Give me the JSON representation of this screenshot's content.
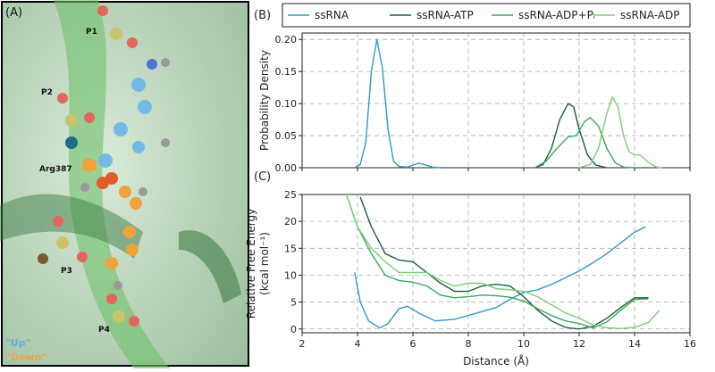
{
  "panel_a": {
    "label": "(A)",
    "annotations": [
      "P1",
      "P2",
      "Arg387",
      "P3",
      "P4"
    ],
    "states": [
      "\"Up\"",
      "\"Down\""
    ]
  },
  "chart_data": [
    {
      "type": "line",
      "panel_label": "(B)",
      "ylabel": [
        "Probability Density"
      ],
      "legend": "above",
      "grid": true,
      "show_xtick_labels": false,
      "xlim": [
        2,
        16
      ],
      "xticks": [
        2,
        4,
        6,
        8,
        10,
        12,
        14,
        16
      ],
      "ylim": [
        0,
        0.21
      ],
      "yticks": [
        {
          "value": 0,
          "label": "0.00"
        },
        {
          "value": 0.05,
          "label": "0.05"
        },
        {
          "value": 0.1,
          "label": "0.10"
        },
        {
          "value": 0.15,
          "label": "0.15"
        },
        {
          "value": 0.2,
          "label": "0.20"
        }
      ],
      "series": [
        {
          "name": "ssRNA",
          "color": "#2e9bc4",
          "x": [
            3.9,
            4.1,
            4.3,
            4.5,
            4.7,
            4.9,
            5.1,
            5.3,
            5.5,
            5.8,
            6.0,
            6.2,
            6.4,
            6.7,
            7.0
          ],
          "values": [
            0,
            0.005,
            0.04,
            0.15,
            0.2,
            0.155,
            0.06,
            0.01,
            0.002,
            0.001,
            0.004,
            0.007,
            0.005,
            0.001,
            0
          ]
        },
        {
          "name": "ssRNA-ATP",
          "color": "#17603a",
          "x": [
            10.4,
            10.7,
            11.0,
            11.3,
            11.6,
            11.8,
            12.0,
            12.3,
            12.6,
            13.0
          ],
          "values": [
            0,
            0.005,
            0.03,
            0.075,
            0.1,
            0.095,
            0.06,
            0.02,
            0.004,
            0
          ]
        },
        {
          "name": "ssRNA-ADP+Pᵢ",
          "color": "#3da85c",
          "x": [
            10.4,
            10.8,
            11.2,
            11.6,
            11.9,
            12.2,
            12.4,
            12.7,
            13.0,
            13.3,
            13.6,
            14.0
          ],
          "values": [
            0,
            0.01,
            0.03,
            0.048,
            0.05,
            0.072,
            0.078,
            0.065,
            0.03,
            0.008,
            0.001,
            0
          ]
        },
        {
          "name": "ssRNA-ADP",
          "color": "#7ccf78",
          "x": [
            12.0,
            12.4,
            12.7,
            13.0,
            13.2,
            13.4,
            13.6,
            13.8,
            14.0,
            14.2,
            14.5,
            14.8,
            15.0
          ],
          "values": [
            0,
            0.005,
            0.03,
            0.085,
            0.11,
            0.095,
            0.05,
            0.025,
            0.02,
            0.02,
            0.008,
            0.001,
            0
          ]
        }
      ]
    },
    {
      "type": "line",
      "panel_label": "(C)",
      "xlabel": "Distance (Å)",
      "ylabel": [
        "Relative Free Energy",
        "(kcal mol⁻¹)"
      ],
      "grid": true,
      "show_xtick_labels": true,
      "xlim": [
        2,
        16
      ],
      "xticks": [
        2,
        4,
        6,
        8,
        10,
        12,
        14,
        16
      ],
      "ylim": [
        -0.7,
        25
      ],
      "yticks": [
        0,
        5,
        10,
        15,
        20,
        25
      ],
      "series": [
        {
          "color": "#2e9bc4",
          "x": [
            3.9,
            4.1,
            4.4,
            4.8,
            5.1,
            5.5,
            5.8,
            6.2,
            6.8,
            7.5,
            8,
            9,
            9.5,
            10,
            10.5,
            11,
            11.5,
            12,
            12.5,
            13,
            13.5,
            14,
            14.4
          ],
          "values": [
            10.5,
            5,
            1.5,
            0.2,
            1,
            3.8,
            4.2,
            3,
            1.5,
            1.8,
            2.5,
            4,
            5.5,
            6.8,
            7.3,
            8.3,
            9.5,
            10.8,
            12.3,
            14,
            16,
            18,
            19
          ]
        },
        {
          "color": "#17603a",
          "x": [
            4.1,
            4.5,
            5,
            5.5,
            6,
            6.5,
            7,
            7.5,
            8,
            8.5,
            9,
            9.5,
            10,
            10.5,
            11,
            11.5,
            12,
            12.5,
            13,
            13.5,
            14,
            14.5
          ],
          "values": [
            24.5,
            19,
            14,
            12.8,
            12.5,
            10.5,
            8.5,
            7,
            7,
            8,
            8.3,
            8,
            6,
            3.5,
            1.5,
            0.3,
            0,
            0.5,
            2,
            4,
            5.8,
            5.8
          ]
        },
        {
          "color": "#3da85c",
          "x": [
            3.6,
            4,
            4.5,
            5,
            5.5,
            6,
            6.5,
            7,
            7.5,
            8,
            8.5,
            9,
            9.5,
            10,
            10.5,
            11,
            11.5,
            12,
            12.5,
            13,
            13.5,
            14,
            14.5
          ],
          "values": [
            25,
            19,
            14,
            10,
            9,
            8.7,
            8,
            6.3,
            5.8,
            6,
            6.3,
            6.2,
            5.9,
            5.2,
            3.8,
            2.5,
            1.5,
            1,
            0.2,
            1.3,
            3.5,
            5.5,
            5.6
          ]
        },
        {
          "color": "#7ccf78",
          "x": [
            3.6,
            4,
            4.5,
            5,
            5.5,
            6,
            6.5,
            7,
            7.5,
            8,
            8.5,
            9,
            9.5,
            10,
            10.5,
            11,
            11.5,
            12,
            12.5,
            13,
            13.5,
            14,
            14.5,
            14.9
          ],
          "values": [
            25,
            19,
            15,
            12.5,
            10.5,
            10.5,
            10.5,
            9,
            8,
            8.5,
            8.5,
            7.5,
            7.3,
            7,
            6,
            4.5,
            3,
            2,
            0.8,
            0.2,
            0.1,
            0.3,
            1.2,
            3.5
          ]
        }
      ]
    }
  ]
}
